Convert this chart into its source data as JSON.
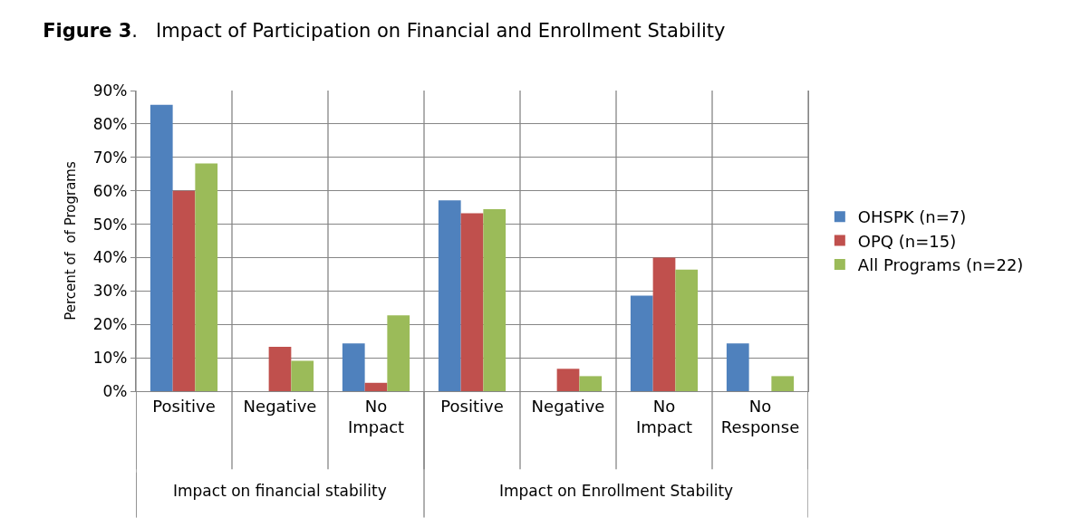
{
  "chart_data": {
    "type": "bar",
    "title": "Figure 3.   Impact of Participation on Financial and Enrollment Stability",
    "ylabel": "Percent of  of Programs",
    "categories": [
      "Positive",
      "Negative",
      "No Impact",
      "Positive",
      "Negative",
      "No Impact",
      "No Response"
    ],
    "series": [
      {
        "name": "OHSPK (n=7)",
        "color": "#4f81bd",
        "values": [
          85.7,
          0,
          14.3,
          57.1,
          0,
          28.6,
          14.3
        ]
      },
      {
        "name": "OPQ (n=15)",
        "color": "#c0504d",
        "values": [
          60,
          13.3,
          2.5,
          53.3,
          6.7,
          40,
          0
        ]
      },
      {
        "name": "All Programs (n=22)",
        "color": "#9bbb59",
        "values": [
          68.2,
          9.1,
          22.7,
          54.5,
          4.5,
          36.4,
          4.5
        ]
      }
    ],
    "ylim": [
      0,
      90
    ],
    "yticks": [
      {
        "value": 0,
        "label": "0%"
      },
      {
        "value": 10,
        "label": "10%"
      },
      {
        "value": 20,
        "label": "20%"
      },
      {
        "value": 30,
        "label": "30%"
      },
      {
        "value": 40,
        "label": "40%"
      },
      {
        "value": 50,
        "label": "50%"
      },
      {
        "value": 60,
        "label": "60%"
      },
      {
        "value": 70,
        "label": "70%"
      },
      {
        "value": 80,
        "label": "80%"
      },
      {
        "value": 90,
        "label": "90%"
      }
    ],
    "annotations": [
      "Impact on financial stability",
      "Impact on Enrollment Stability"
    ],
    "grid": true,
    "legend": "right"
  }
}
